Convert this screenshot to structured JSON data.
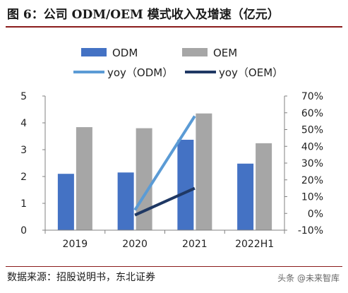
{
  "figure": {
    "title": "图 6：公司 ODM/OEM 模式收入及增速（亿元）",
    "source": "数据来源：招股说明书，东北证券",
    "watermark": "头条 @未来智库"
  },
  "colors": {
    "odm": "#4472c4",
    "oem": "#a6a6a6",
    "yoy_odm": "#5b9bd5",
    "yoy_oem": "#1f3864",
    "title_rule": "#8a1c1c"
  },
  "chart_data": {
    "type": "bar",
    "categories": [
      "2019",
      "2020",
      "2021",
      "2022H1"
    ],
    "series": [
      {
        "name": "ODM",
        "type": "bar",
        "axis": "left",
        "values": [
          2.1,
          2.15,
          3.37,
          2.48
        ]
      },
      {
        "name": "OEM",
        "type": "bar",
        "axis": "left",
        "values": [
          3.84,
          3.8,
          4.35,
          3.24
        ]
      },
      {
        "name": "yoy（ODM）",
        "type": "line",
        "axis": "right",
        "values": [
          null,
          0.02,
          0.58,
          null
        ]
      },
      {
        "name": "yoy（OEM）",
        "type": "line",
        "axis": "right",
        "values": [
          null,
          -0.01,
          0.15,
          null
        ]
      }
    ],
    "y_left": {
      "min": 0,
      "max": 5,
      "ticks": [
        0,
        1,
        2,
        3,
        4,
        5
      ],
      "tick_labels": [
        "0",
        "1",
        "2",
        "3",
        "4",
        "5"
      ]
    },
    "y_right": {
      "min": -0.1,
      "max": 0.7,
      "ticks": [
        -0.1,
        0,
        0.1,
        0.2,
        0.3,
        0.4,
        0.5,
        0.6,
        0.7
      ],
      "tick_labels": [
        "-10%",
        "0%",
        "10%",
        "20%",
        "30%",
        "40%",
        "50%",
        "60%",
        "70%"
      ]
    },
    "grid": false,
    "legend": {
      "position": "top",
      "entries": [
        "ODM",
        "OEM",
        "yoy（ODM）",
        "yoy（OEM）"
      ]
    }
  }
}
